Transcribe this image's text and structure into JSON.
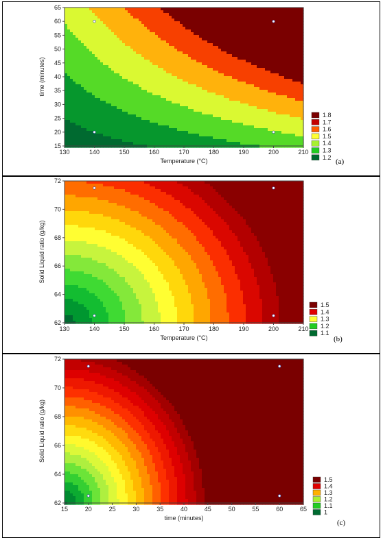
{
  "chart_data": [
    {
      "type": "heatmap",
      "panel_label": "(a)",
      "xlabel": "Temperature (°C)",
      "ylabel": "time (minutes)",
      "xlim": [
        130,
        210
      ],
      "ylim": [
        15,
        65
      ],
      "xticks": [
        "130",
        "140",
        "150",
        "160",
        "170",
        "180",
        "190",
        "200",
        "210"
      ],
      "yticks": [
        "15",
        "20",
        "25",
        "30",
        "35",
        "40",
        "45",
        "50",
        "55",
        "60",
        "65"
      ],
      "legend": [
        {
          "label": "1.8",
          "color": "#7a0000"
        },
        {
          "label": "1.7",
          "color": "#c40000"
        },
        {
          "label": "1.6",
          "color": "#ff5a00"
        },
        {
          "label": "1.5",
          "color": "#ffff33"
        },
        {
          "label": "1.4",
          "color": "#a8f030"
        },
        {
          "label": "1.3",
          "color": "#22cc22"
        },
        {
          "label": "1.2",
          "color": "#006a30"
        }
      ],
      "design_points": [
        [
          140,
          20
        ],
        [
          140,
          60
        ],
        [
          200,
          20
        ],
        [
          200,
          60
        ]
      ]
    },
    {
      "type": "heatmap",
      "panel_label": "(b)",
      "xlabel": "Temperature (°C)",
      "ylabel": "Solid Liquid ratio (g/kg)",
      "xlim": [
        130,
        210
      ],
      "ylim": [
        62,
        72
      ],
      "xticks": [
        "130",
        "140",
        "150",
        "160",
        "170",
        "180",
        "190",
        "200",
        "210"
      ],
      "yticks": [
        "62",
        "64",
        "66",
        "68",
        "70",
        "72"
      ],
      "legend": [
        {
          "label": "1.5",
          "color": "#7a0000"
        },
        {
          "label": "1.4",
          "color": "#e00000"
        },
        {
          "label": "1.3",
          "color": "#ffff33"
        },
        {
          "label": "1.2",
          "color": "#22cc22"
        },
        {
          "label": "1.1",
          "color": "#006a30"
        }
      ],
      "design_points": [
        [
          140,
          62.5
        ],
        [
          140,
          71.5
        ],
        [
          200,
          62.5
        ],
        [
          200,
          71.5
        ]
      ]
    },
    {
      "type": "heatmap",
      "panel_label": "(c)",
      "xlabel": "time (minutes)",
      "ylabel": "Solid Liquid ratio (g/kg)",
      "xlim": [
        15,
        65
      ],
      "ylim": [
        62,
        72
      ],
      "xticks": [
        "15",
        "20",
        "25",
        "30",
        "35",
        "40",
        "45",
        "50",
        "55",
        "60",
        "65"
      ],
      "yticks": [
        "62",
        "64",
        "66",
        "68",
        "70",
        "72"
      ],
      "legend": [
        {
          "label": "1.5",
          "color": "#7a0000"
        },
        {
          "label": "1.4",
          "color": "#e00000"
        },
        {
          "label": "1.3",
          "color": "#ffb000"
        },
        {
          "label": "1.2",
          "color": "#a8f030"
        },
        {
          "label": "1.1",
          "color": "#22cc22"
        },
        {
          "label": "1",
          "color": "#006a30"
        }
      ],
      "design_points": [
        [
          20,
          62.5
        ],
        [
          20,
          71.5
        ],
        [
          60,
          62.5
        ],
        [
          60,
          71.5
        ]
      ]
    }
  ]
}
